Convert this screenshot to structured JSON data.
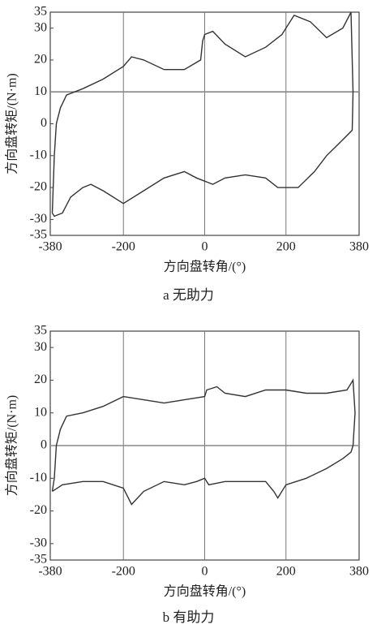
{
  "chart_data": [
    {
      "type": "line",
      "xlabel": "方向盘转角/(°)",
      "ylabel": "方向盘转矩/(N·m)",
      "caption": "a 无助力",
      "xlim": [
        -380,
        380
      ],
      "ylim": [
        -35,
        35
      ],
      "xticks": [
        -380,
        -200,
        0,
        200,
        380
      ],
      "yticks": [
        35,
        30,
        20,
        10,
        0,
        -10,
        -20,
        -30,
        -35
      ],
      "grid": true,
      "reference_line": 10,
      "x": [
        -375,
        -370,
        -365,
        -355,
        -340,
        -300,
        -250,
        -200,
        -180,
        -150,
        -100,
        -50,
        -10,
        -5,
        0,
        20,
        50,
        100,
        150,
        190,
        200,
        220,
        260,
        300,
        340,
        360,
        365,
        363,
        340,
        300,
        270,
        230,
        200,
        180,
        150,
        100,
        50,
        20,
        0,
        -20,
        -50,
        -100,
        -150,
        -200,
        -250,
        -280,
        -300,
        -330,
        -350,
        -370,
        -375
      ],
      "series": [
        {
          "color": "#333333",
          "values": [
            -28,
            -10,
            0,
            5,
            9,
            11,
            14,
            18,
            21,
            20,
            17,
            17,
            20,
            26,
            28,
            29,
            25,
            21,
            24,
            28,
            30,
            34,
            32,
            27,
            30,
            35,
            10,
            -2,
            -5,
            -10,
            -15,
            -20,
            -20,
            -20,
            -17,
            -16,
            -17,
            -19,
            -18,
            -17,
            -15,
            -17,
            -21,
            -25,
            -21,
            -19,
            -20,
            -23,
            -28,
            -29,
            -28
          ]
        }
      ]
    },
    {
      "type": "line",
      "xlabel": "方向盘转角/(°)",
      "ylabel": "方向盘转矩/(N·m)",
      "caption": "b 有助力",
      "xlim": [
        -380,
        380
      ],
      "ylim": [
        -35,
        35
      ],
      "xticks": [
        -380,
        -200,
        0,
        200,
        380
      ],
      "yticks": [
        35,
        30,
        20,
        10,
        0,
        -10,
        -20,
        -30,
        -35
      ],
      "grid": true,
      "reference_line": 0,
      "x": [
        -375,
        -370,
        -365,
        -355,
        -340,
        -300,
        -250,
        -200,
        -150,
        -100,
        -50,
        0,
        5,
        30,
        50,
        100,
        150,
        200,
        250,
        300,
        350,
        365,
        370,
        365,
        360,
        340,
        300,
        250,
        200,
        180,
        170,
        150,
        100,
        50,
        10,
        0,
        -20,
        -50,
        -100,
        -150,
        -180,
        -200,
        -250,
        -300,
        -350,
        -375
      ],
      "series": [
        {
          "color": "#333333",
          "values": [
            -14,
            -10,
            0,
            5,
            9,
            10,
            12,
            15,
            14,
            13,
            14,
            15,
            17,
            18,
            16,
            15,
            17,
            17,
            16,
            16,
            17,
            20,
            10,
            0,
            -2,
            -4,
            -7,
            -10,
            -12,
            -16,
            -14,
            -11,
            -11,
            -11,
            -12,
            -10,
            -11,
            -12,
            -11,
            -14,
            -18,
            -13,
            -11,
            -11,
            -12,
            -14
          ]
        }
      ]
    }
  ]
}
